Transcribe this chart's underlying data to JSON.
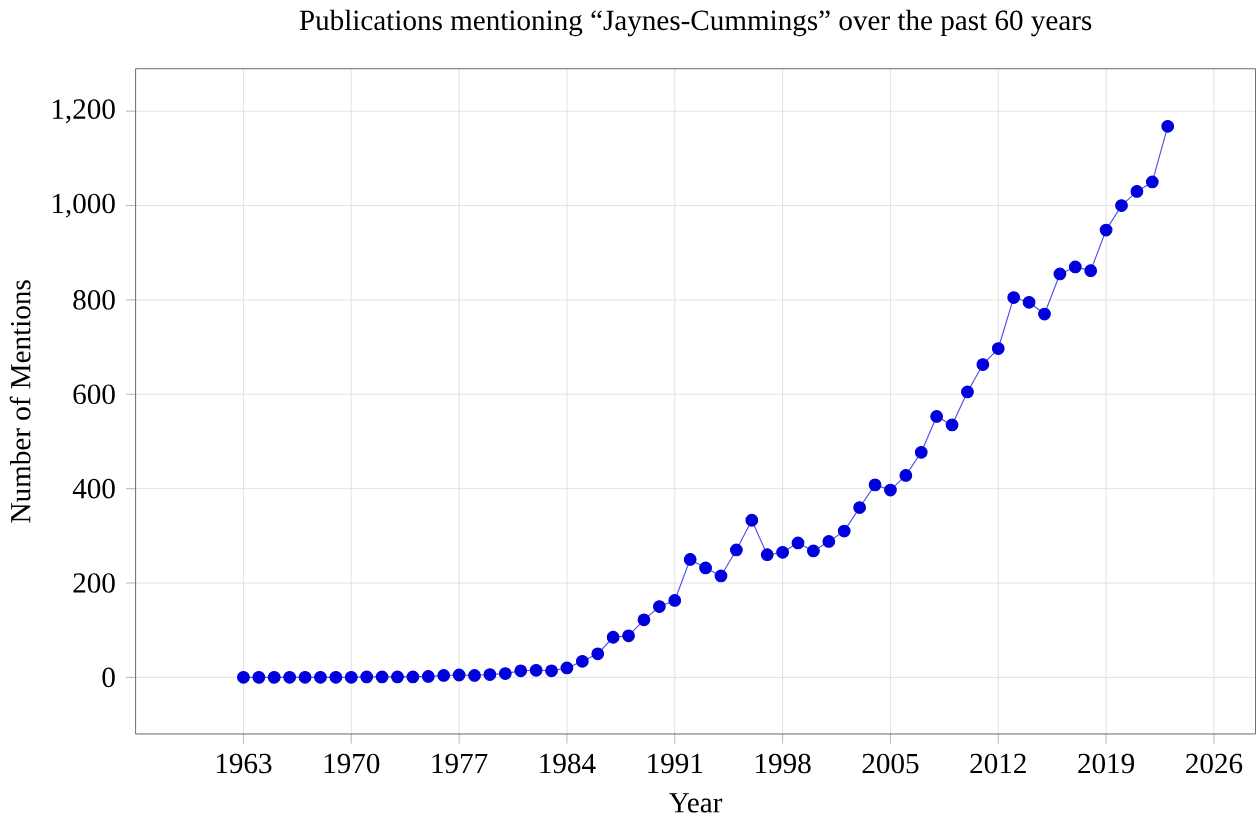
{
  "chart_data": {
    "type": "line",
    "title": "Publications mentioning “Jaynes-Cummings” over the past 60 years",
    "xlabel": "Year",
    "ylabel": "Number of Mentions",
    "x": [
      1963,
      1964,
      1965,
      1966,
      1967,
      1968,
      1969,
      1970,
      1971,
      1972,
      1973,
      1974,
      1975,
      1976,
      1977,
      1978,
      1979,
      1980,
      1981,
      1982,
      1983,
      1984,
      1985,
      1986,
      1987,
      1988,
      1989,
      1990,
      1991,
      1992,
      1993,
      1994,
      1995,
      1996,
      1997,
      1998,
      1999,
      2000,
      2001,
      2002,
      2003,
      2004,
      2005,
      2006,
      2007,
      2008,
      2009,
      2010,
      2011,
      2012,
      2013,
      2014,
      2015,
      2016,
      2017,
      2018,
      2019,
      2020,
      2021,
      2022,
      2023
    ],
    "values": [
      0,
      0,
      0,
      0,
      0,
      0,
      0,
      0,
      1,
      1,
      1,
      1,
      2,
      4,
      5,
      4,
      6,
      8,
      14,
      15,
      14,
      20,
      34,
      50,
      85,
      88,
      122,
      150,
      163,
      250,
      232,
      215,
      270,
      333,
      260,
      265,
      285,
      268,
      288,
      310,
      360,
      408,
      397,
      428,
      477,
      553,
      535,
      605,
      663,
      697,
      805,
      795,
      770,
      855,
      870,
      862,
      948,
      1000,
      1030,
      1050,
      1168
    ],
    "color": "#0000dd",
    "marker": "circle",
    "line_style": "solid",
    "grid": true,
    "xlim": [
      1956,
      2028.7
    ],
    "xticks": [
      1963,
      1970,
      1977,
      1984,
      1991,
      1998,
      2005,
      2012,
      2019,
      2026
    ],
    "ylim": [
      -120,
      1290
    ],
    "yticks": [
      {
        "value": 0,
        "label": "0"
      },
      {
        "value": 200,
        "label": "200"
      },
      {
        "value": 400,
        "label": "400"
      },
      {
        "value": 600,
        "label": "600"
      },
      {
        "value": 800,
        "label": "800"
      },
      {
        "value": 1000,
        "label": "1,000"
      },
      {
        "value": 1200,
        "label": "1,200"
      }
    ]
  }
}
